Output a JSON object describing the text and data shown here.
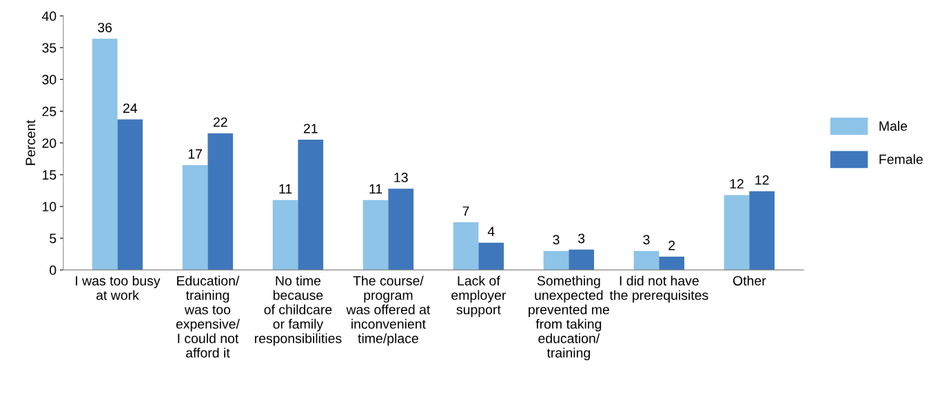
{
  "chart_data": {
    "type": "bar",
    "ylabel": "Percent",
    "categories": [
      "I was too busy\nat work",
      "Education/\ntraining\nwas too\nexpensive/\nI could not\nafford it",
      "No time\nbecause\nof childcare\nor family\nresponsibilities",
      "The course/\nprogram\nwas offered at\ninconvenient\ntime/place",
      "Lack of\nemployer\nsupport",
      "Something\nunexpected\nprevented me\nfrom taking\neducation/\ntraining",
      "I did not have\nthe prerequisites",
      "Other"
    ],
    "series": [
      {
        "name": "Male",
        "color": "#8dc4e8",
        "values": [
          36.4,
          16.5,
          11.0,
          11.0,
          7.5,
          3.0,
          3.0,
          11.8
        ],
        "value_labels": [
          "36",
          "17",
          "11",
          "11",
          "7",
          "3",
          "3",
          "12"
        ]
      },
      {
        "name": "Female",
        "color": "#3f77bc",
        "values": [
          23.7,
          21.5,
          20.5,
          12.8,
          4.3,
          3.2,
          2.1,
          12.4
        ],
        "value_labels": [
          "24",
          "22",
          "21",
          "13",
          "4",
          "3",
          "2",
          "12"
        ]
      }
    ],
    "ylim": [
      0,
      40
    ],
    "yticks": [
      0,
      5,
      10,
      15,
      20,
      25,
      30,
      35,
      40
    ],
    "grid": false,
    "legend": "right"
  }
}
